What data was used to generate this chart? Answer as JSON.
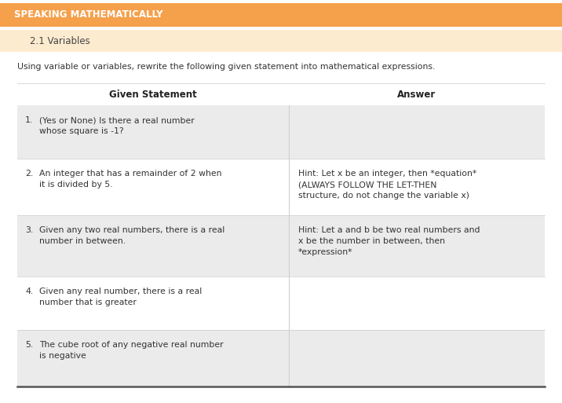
{
  "title": "SPEAKING MATHEMATICALLY",
  "title_bg": "#F5A04B",
  "title_color": "#FFFFFF",
  "subtitle": "2.1 Variables",
  "subtitle_bg": "#FDEBD0",
  "instruction": "Using variable or variables, rewrite the following given statement into mathematical expressions.",
  "col1_header": "Given Statement",
  "col2_header": "Answer",
  "rows": [
    {
      "number": "1.",
      "statement": "(Yes or None) Is there a real number\nwhose square is -1?",
      "answer": "",
      "bg": "#EBEBEB"
    },
    {
      "number": "2.",
      "statement": "An integer that has a remainder of 2 when\nit is divided by 5.",
      "answer": "Hint: Let x be an integer, then *equation*\n(ALWAYS FOLLOW THE LET-THEN\nstructure, do not change the variable x)",
      "bg": "#FFFFFF"
    },
    {
      "number": "3.",
      "statement": "Given any two real numbers, there is a real\nnumber in between.",
      "answer": "Hint: Let a and b be two real numbers and\nx be the number in between, then\n*expression*",
      "bg": "#EBEBEB"
    },
    {
      "number": "4.",
      "statement": "Given any real number, there is a real\nnumber that is greater",
      "answer": "",
      "bg": "#FFFFFF"
    },
    {
      "number": "5.",
      "statement": "The cube root of any negative real number\nis negative",
      "answer": "",
      "bg": "#EBEBEB"
    }
  ],
  "fig_width": 7.16,
  "fig_height": 5.13,
  "dpi": 100
}
